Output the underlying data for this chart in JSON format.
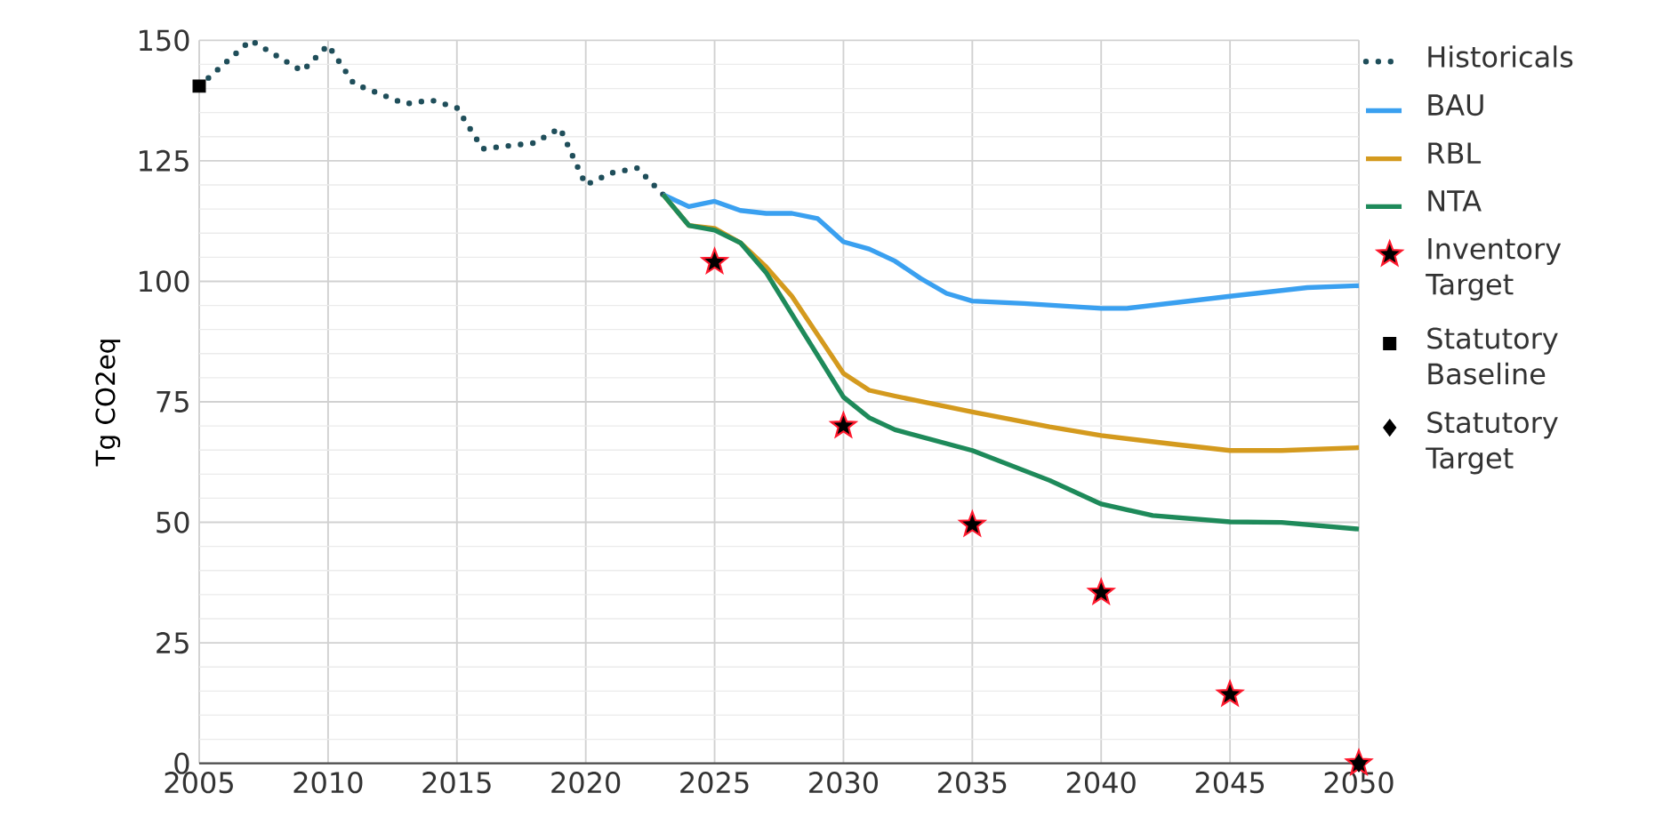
{
  "chart_data": {
    "type": "line",
    "ylabel": "Tg CO2eq",
    "xlim": [
      2005,
      2050
    ],
    "ylim": [
      0,
      150
    ],
    "xticks": [
      2005,
      2010,
      2015,
      2020,
      2025,
      2030,
      2035,
      2040,
      2045,
      2050
    ],
    "yticks": [
      0,
      25,
      50,
      75,
      100,
      125,
      150
    ],
    "grid": true,
    "legend": "right",
    "series": [
      {
        "name": "Historicals",
        "color": "#1f4e5a",
        "line_style": "dotted",
        "x": [
          2005,
          2007,
          2009,
          2010,
          2011,
          2013,
          2014,
          2015,
          2016,
          2018,
          2019,
          2020,
          2021,
          2022,
          2023
        ],
        "values": [
          140.5,
          150,
          143.6,
          149,
          141,
          136.8,
          137.6,
          136,
          127.5,
          128.7,
          131.8,
          120,
          122.5,
          123.5,
          118
        ]
      },
      {
        "name": "BAU",
        "color": "#3aa0f0",
        "line_style": "solid",
        "x": [
          2023,
          2024,
          2025,
          2026,
          2027,
          2028,
          2029,
          2030,
          2031,
          2032,
          2033,
          2034,
          2035,
          2037,
          2040,
          2041,
          2045,
          2048,
          2050
        ],
        "values": [
          118,
          115.5,
          116.6,
          114.7,
          114.1,
          114.1,
          113,
          108.2,
          106.7,
          104.2,
          100.6,
          97.5,
          95.9,
          95.4,
          94.4,
          94.4,
          96.9,
          98.7,
          99.1
        ]
      },
      {
        "name": "RBL",
        "color": "#d49a1e",
        "line_style": "solid",
        "x": [
          2023,
          2024,
          2025,
          2026,
          2027,
          2028,
          2029,
          2030,
          2031,
          2032,
          2035,
          2038,
          2040,
          2043,
          2045,
          2047,
          2050
        ],
        "values": [
          118,
          111.6,
          111,
          108,
          103,
          96.9,
          88.9,
          80.9,
          77.4,
          76.2,
          72.9,
          69.8,
          68,
          66.1,
          64.9,
          64.9,
          65.5
        ]
      },
      {
        "name": "NTA",
        "color": "#1e8a5a",
        "line_style": "solid",
        "x": [
          2023,
          2024,
          2025,
          2026,
          2027,
          2028,
          2029,
          2030,
          2031,
          2032,
          2035,
          2038,
          2040,
          2042,
          2045,
          2047,
          2050
        ],
        "values": [
          118,
          111.6,
          110.6,
          108,
          101.8,
          93.2,
          84.6,
          76,
          71.7,
          69.2,
          64.9,
          58.7,
          53.8,
          51.4,
          50.1,
          50,
          48.6
        ]
      },
      {
        "name": "Inventory Target",
        "type": "scatter",
        "marker": "star",
        "color": "#ff1a2e",
        "x": [
          2025,
          2030,
          2035,
          2040,
          2045,
          2050
        ],
        "values": [
          104,
          70,
          49.5,
          35.4,
          14.3,
          0
        ]
      },
      {
        "name": "Statutory Baseline",
        "type": "scatter",
        "marker": "square",
        "color": "#000000",
        "x": [
          2005
        ],
        "values": [
          140.5
        ]
      },
      {
        "name": "Statutory Target",
        "type": "scatter",
        "marker": "diamond",
        "color": "#000000",
        "x": [
          2050
        ],
        "values": [
          0
        ]
      }
    ]
  }
}
